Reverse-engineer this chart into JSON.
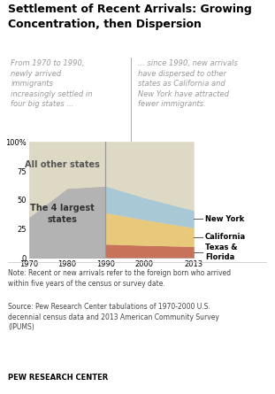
{
  "title": "Settlement of Recent Arrivals: Growing\nConcentration, then Dispersion",
  "subtitle_left": "From 1970 to 1990,\nnewly arrived\nimmigrants\nincreasingly settled in\nfour big states ...",
  "subtitle_right": "... since 1990, new arrivals\nhave dispersed to other\nstates as California and\nNew York have attracted\nfewer immigrants.",
  "note": "Note: Recent or new arrivals refer to the foreign born who arrived\nwithin five years of the census or survey date.",
  "source": "Source: Pew Research Center tabulations of 1970-2000 U.S.\ndecennial census data and 2013 American Community Survey\n(IPUMS)",
  "footer": "PEW RESEARCH CENTER",
  "years_pre": [
    1970,
    1980,
    1990
  ],
  "years_post": [
    1990,
    2000,
    2013
  ],
  "four_largest_pre": [
    35,
    60,
    62
  ],
  "texas_florida_post": [
    12,
    11,
    10
  ],
  "california_post": [
    27,
    22,
    16
  ],
  "new_york_post": [
    23,
    19,
    15
  ],
  "color_gray": "#b3b3b3",
  "color_beige": "#ddd9c4",
  "color_rust": "#c8725a",
  "color_yellow": "#e8c87a",
  "color_blue": "#a8c8d5",
  "background_chart": "#e5e1d0",
  "vline_color": "#999999",
  "ylim": [
    0,
    100
  ],
  "xlim": [
    1970,
    2013
  ]
}
